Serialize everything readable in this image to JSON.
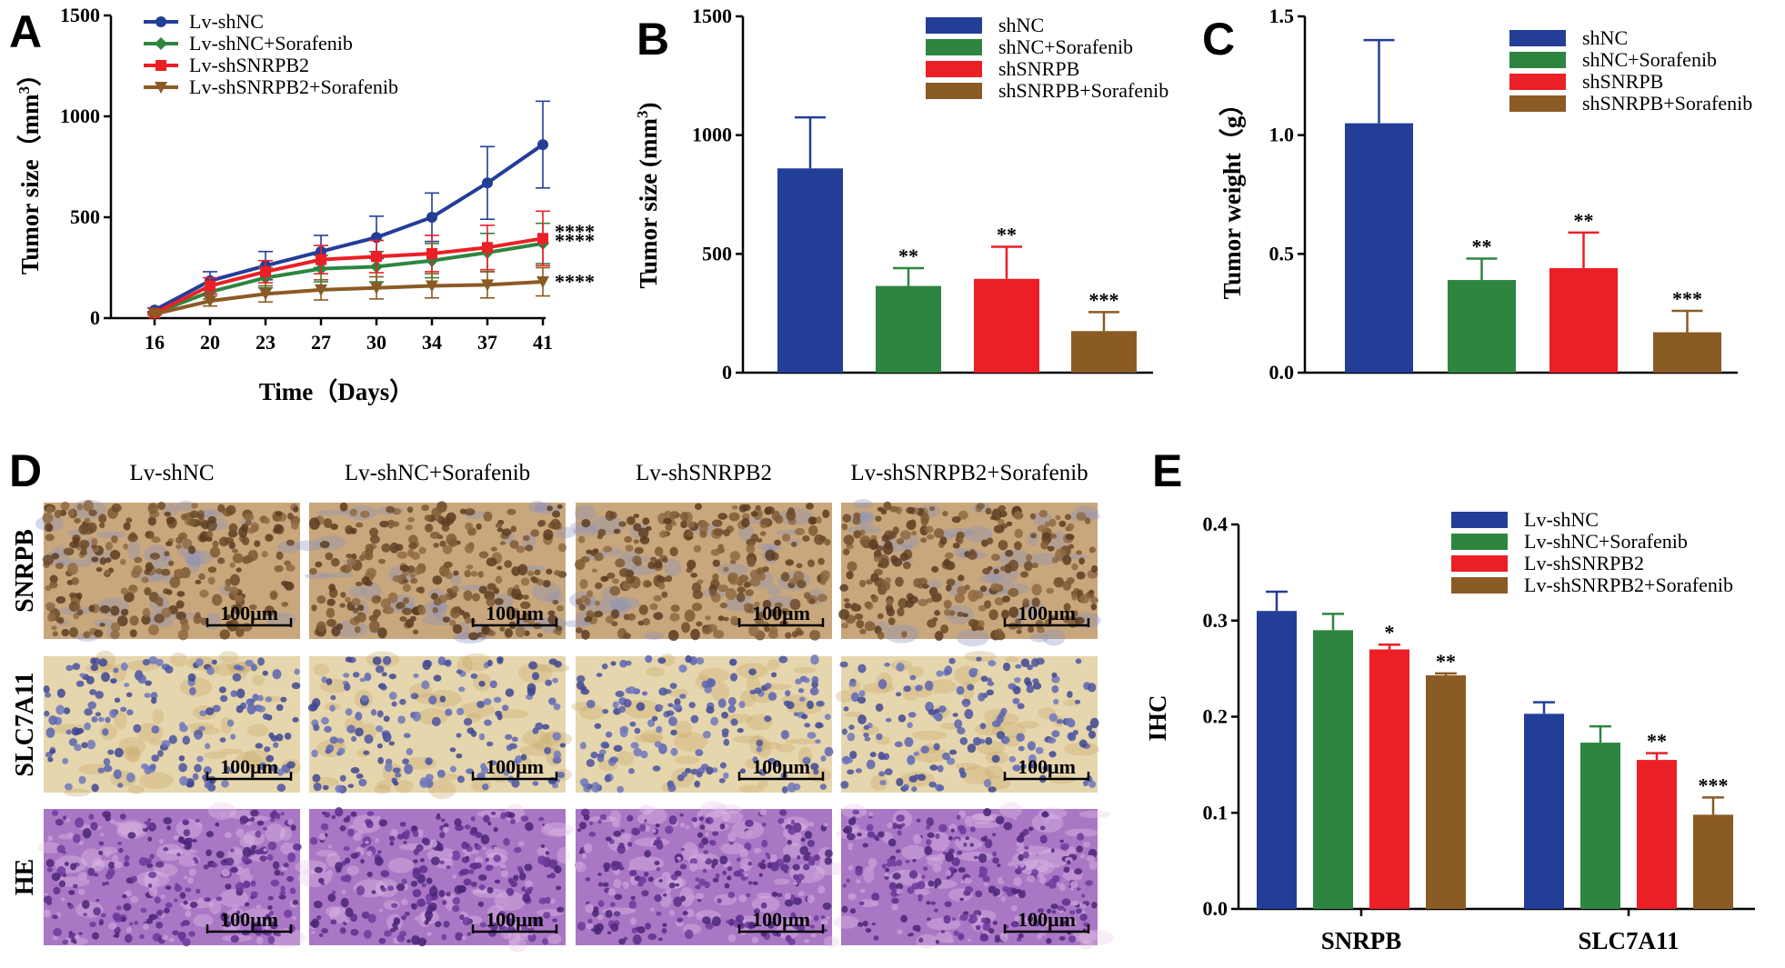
{
  "panels": {
    "A": {
      "letter": "A"
    },
    "B": {
      "letter": "B"
    },
    "C": {
      "letter": "C"
    },
    "D": {
      "letter": "D"
    },
    "E": {
      "letter": "E"
    }
  },
  "colors": {
    "blue": "#233E97",
    "green": "#2E8540",
    "red": "#EC1F26",
    "brown": "#8A5B24"
  },
  "chart_data": [
    {
      "id": "A",
      "type": "line",
      "title": "",
      "xlabel": "Time（Days）",
      "ylabel": "Tumor size（mm³）",
      "ylabel_base": "Tumor size（mm",
      "ylabel_sup": "3",
      "ylabel_close": "）",
      "ylim": [
        0,
        1500
      ],
      "yticks": [
        "0",
        "500",
        "1000",
        "1500"
      ],
      "categories": [
        "16",
        "20",
        "23",
        "27",
        "30",
        "34",
        "37",
        "41"
      ],
      "legend_position": "top-left",
      "series": [
        {
          "name": "Lv-shNC",
          "color": "blue",
          "marker": "circle",
          "values": [
            40,
            185,
            260,
            330,
            400,
            500,
            670,
            860
          ],
          "errors": [
            10,
            45,
            70,
            80,
            105,
            120,
            180,
            215
          ],
          "sig": ""
        },
        {
          "name": "Lv-shNC+Sorafenib",
          "color": "green",
          "marker": "diamond",
          "values": [
            25,
            130,
            200,
            245,
            255,
            285,
            325,
            370
          ],
          "errors": [
            8,
            35,
            50,
            65,
            75,
            85,
            95,
            100
          ],
          "sig": "****"
        },
        {
          "name": "Lv-shSNRPB2",
          "color": "red",
          "marker": "square",
          "values": [
            25,
            160,
            230,
            290,
            305,
            320,
            350,
            395
          ],
          "errors": [
            8,
            40,
            55,
            70,
            80,
            90,
            110,
            135
          ],
          "sig": "****"
        },
        {
          "name": "Lv-shSNRPB2+Sorafenib",
          "color": "brown",
          "marker": "triangle-down",
          "values": [
            20,
            85,
            120,
            140,
            150,
            160,
            165,
            180
          ],
          "errors": [
            5,
            25,
            40,
            50,
            55,
            60,
            65,
            70
          ],
          "sig": "****"
        }
      ]
    },
    {
      "id": "B",
      "type": "bar",
      "title": "",
      "xlabel": "",
      "ylabel": "Tumor size (mm³)",
      "ylabel_base": "Tumor size (mm",
      "ylabel_sup": "3",
      "ylabel_close": ")",
      "ylim": [
        0,
        1500
      ],
      "yticks": [
        "0",
        "500",
        "1000",
        "1500"
      ],
      "legend_position": "top-right",
      "categories": [
        "shNC",
        "shNC+Sorafenib",
        "shSNRPB",
        "shSNRPB+Sorafenib"
      ],
      "colors": [
        "blue",
        "green",
        "red",
        "brown"
      ],
      "values": [
        860,
        365,
        395,
        175
      ],
      "errors": [
        215,
        75,
        135,
        80
      ],
      "sig": [
        "",
        "**",
        "**",
        "***"
      ]
    },
    {
      "id": "C",
      "type": "bar",
      "title": "",
      "xlabel": "",
      "ylabel": "Tumor weight（g）",
      "ylim": [
        0,
        1.5
      ],
      "yticks": [
        "0.0",
        "0.5",
        "1.0",
        "1.5"
      ],
      "legend_position": "top-right",
      "categories": [
        "shNC",
        "shNC+Sorafenib",
        "shSNRPB",
        "shSNRPB+Sorafenib"
      ],
      "colors": [
        "blue",
        "green",
        "red",
        "brown"
      ],
      "values": [
        1.05,
        0.39,
        0.44,
        0.17
      ],
      "errors": [
        0.35,
        0.09,
        0.15,
        0.09
      ],
      "sig": [
        "",
        "**",
        "**",
        "***"
      ]
    },
    {
      "id": "E",
      "type": "bar",
      "title": "",
      "xlabel": "",
      "ylabel": "IHC",
      "ylim": [
        0,
        0.4
      ],
      "yticks": [
        "0.0",
        "0.1",
        "0.2",
        "0.3",
        "0.4"
      ],
      "legend_position": "top-right",
      "groups": [
        "SNRPB",
        "SLC7A11"
      ],
      "series": [
        {
          "name": "Lv-shNC",
          "color": "blue",
          "values": [
            0.31,
            0.203
          ],
          "errors": [
            0.02,
            0.012
          ],
          "sig": [
            "",
            ""
          ]
        },
        {
          "name": "Lv-shNC+Sorafenib",
          "color": "green",
          "values": [
            0.29,
            0.173
          ],
          "errors": [
            0.017,
            0.017
          ],
          "sig": [
            "",
            ""
          ]
        },
        {
          "name": "Lv-shSNRPB2",
          "color": "red",
          "values": [
            0.27,
            0.155
          ],
          "errors": [
            0.005,
            0.007
          ],
          "sig": [
            "*",
            "**"
          ]
        },
        {
          "name": "Lv-shSNRPB2+Sorafenib",
          "color": "brown",
          "values": [
            0.243,
            0.098
          ],
          "errors": [
            0.002,
            0.018
          ],
          "sig": [
            "**",
            "***"
          ]
        }
      ]
    }
  ],
  "micrographs": {
    "columns": [
      "Lv-shNC",
      "Lv-shNC+Sorafenib",
      "Lv-shSNRPB2",
      "Lv-shSNRPB2+Sorafenib"
    ],
    "rows": [
      {
        "label": "SNRPB",
        "stain": "dab-nuclear"
      },
      {
        "label": "SLC7A11",
        "stain": "dab-cytoplasm"
      },
      {
        "label": "HE",
        "stain": "hematoxylin-eosin"
      }
    ],
    "scale_bar": "100μm"
  }
}
